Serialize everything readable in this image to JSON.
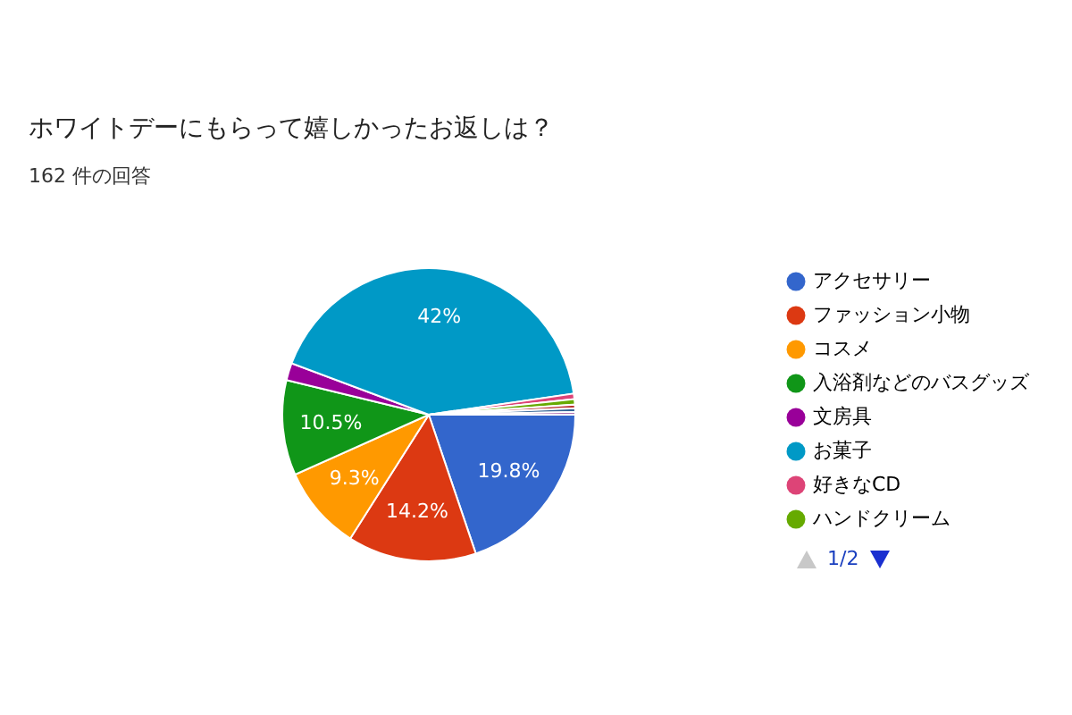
{
  "chart_data": {
    "type": "pie",
    "title": "ホワイトデーにもらって嬉しかったお返しは？",
    "subtitle": "162 件の回答",
    "categories": [
      "アクセサリー",
      "ファッション小物",
      "コスメ",
      "入浴剤などのバスグッズ",
      "文房具",
      "お菓子",
      "好きなCD",
      "ハンドクリーム",
      null,
      null,
      null
    ],
    "values": [
      19.8,
      14.2,
      9.3,
      10.5,
      1.9,
      42,
      0.6,
      0.6,
      0.4,
      0.4,
      0.3
    ],
    "colors": [
      "#3366cc",
      "#dc3912",
      "#ff9900",
      "#109618",
      "#990099",
      "#0099c6",
      "#dd4477",
      "#66aa00",
      "#b82e2e",
      "#316395",
      "#994499"
    ],
    "value_labels": [
      "19.8%",
      "14.2%",
      "9.3%",
      "10.5%",
      null,
      "42%",
      null,
      null,
      null,
      null,
      null
    ],
    "legend": "right",
    "annotations": [
      "1/2"
    ]
  }
}
